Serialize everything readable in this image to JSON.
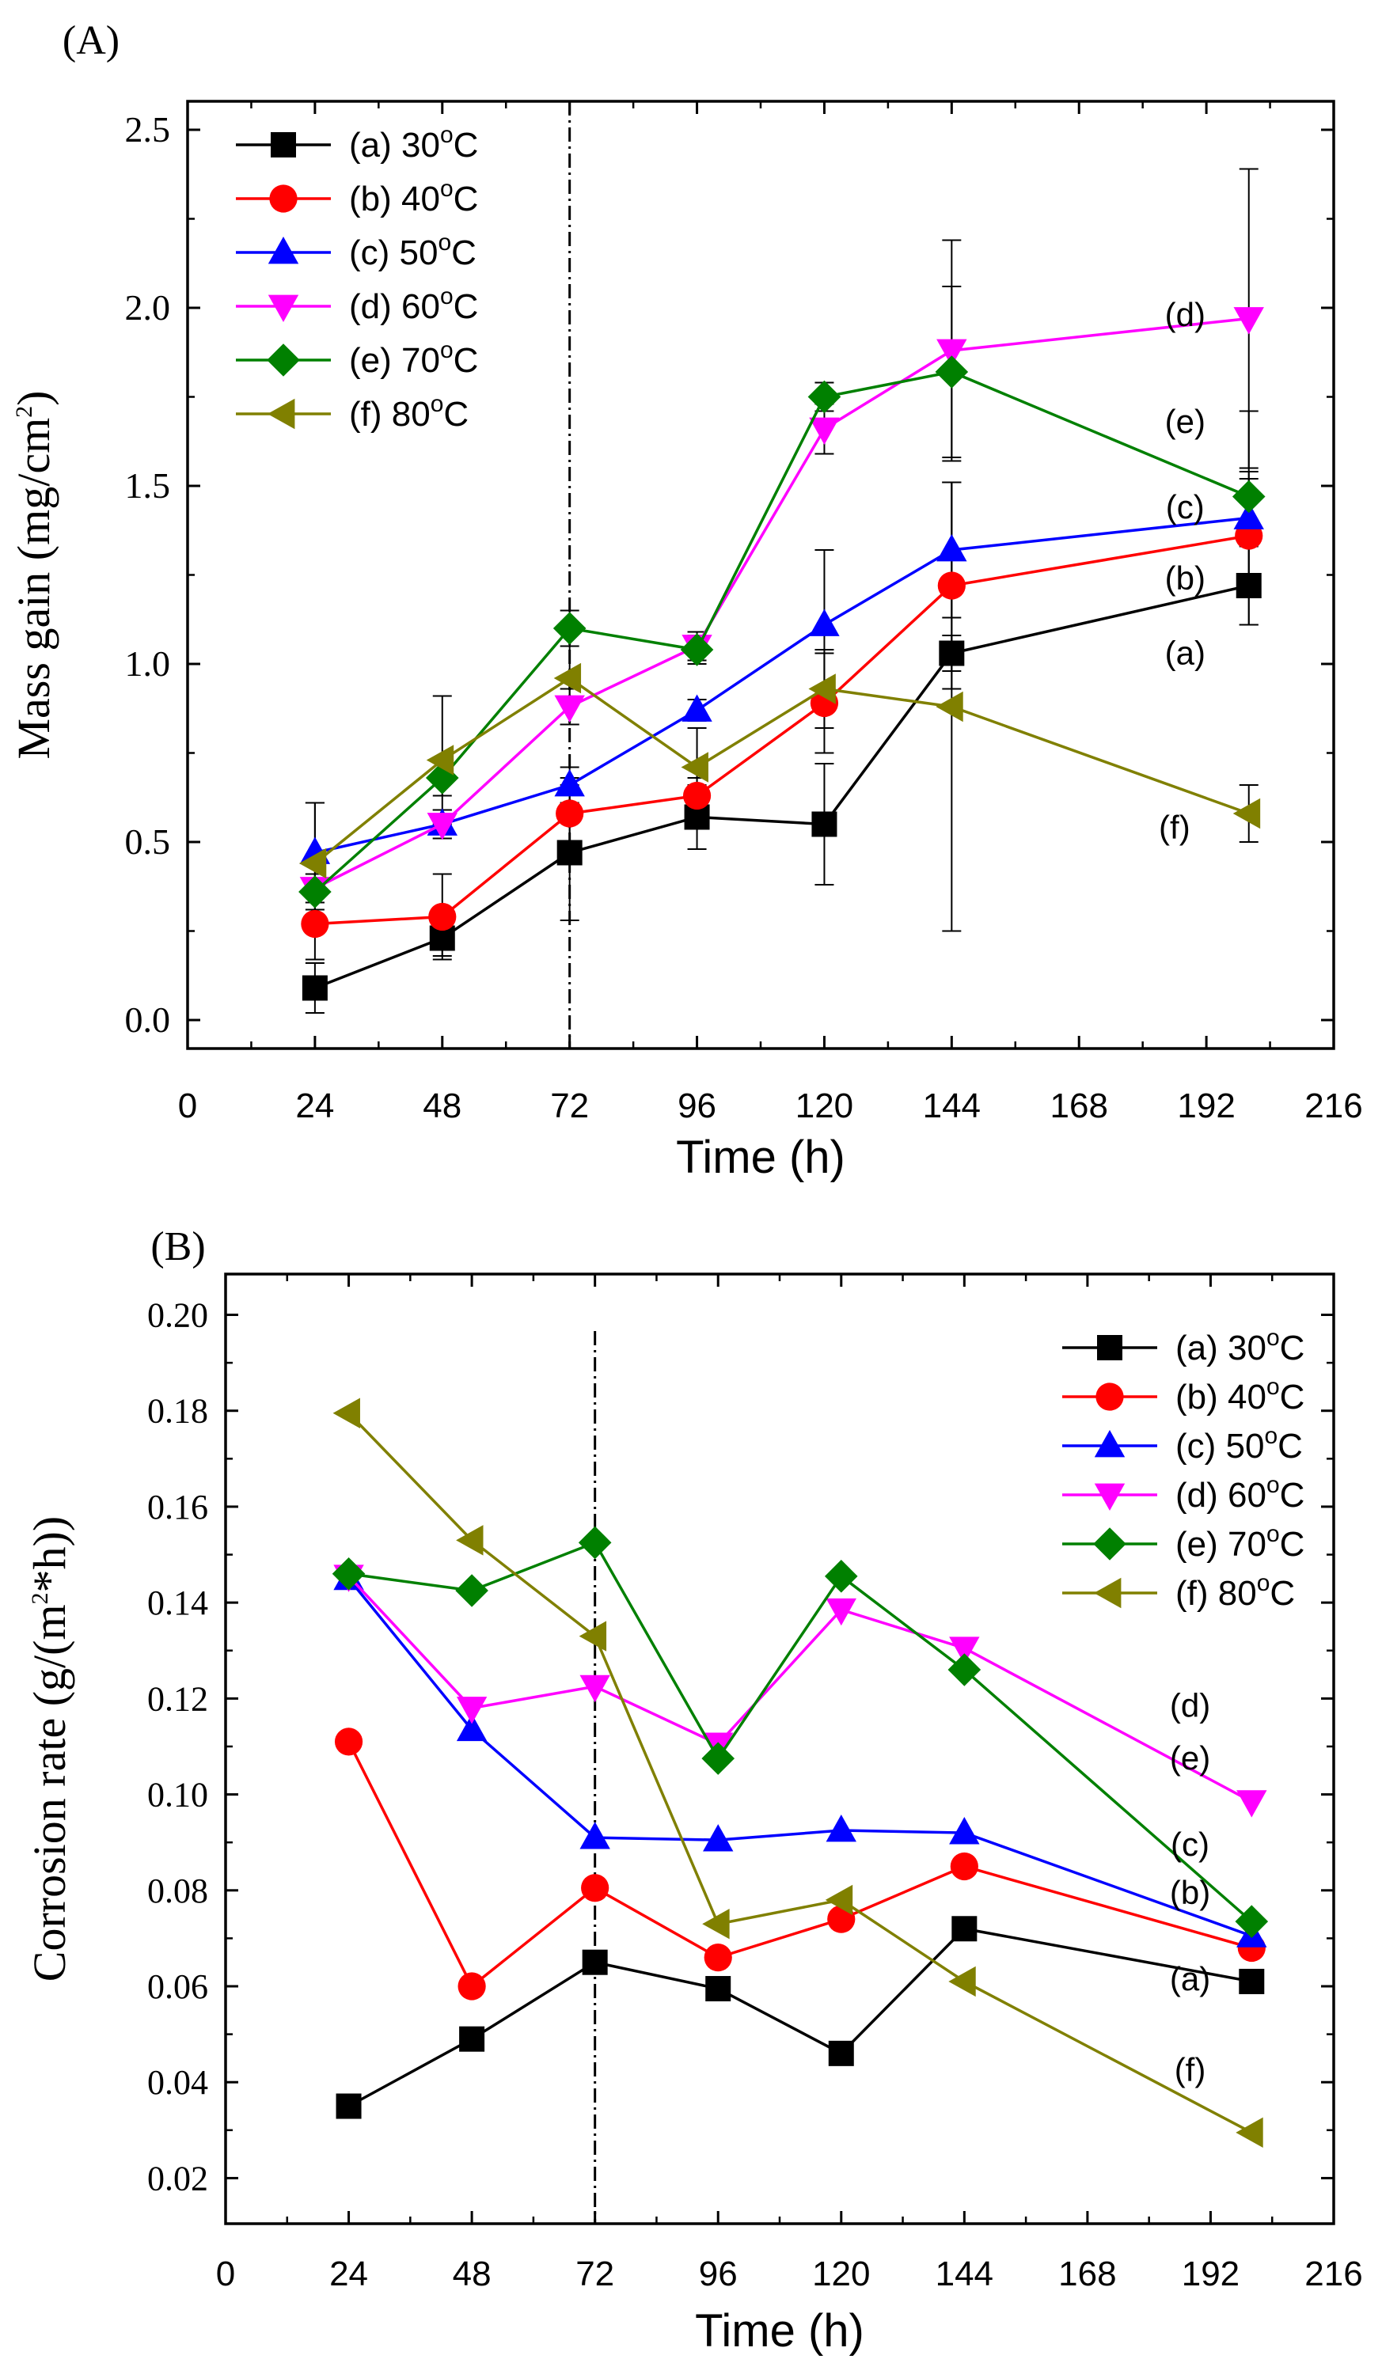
{
  "chart_data": [
    {
      "panel": "(A)",
      "type": "line",
      "xlabel": "Time (h)",
      "ylabel_main": "Mass gain (mg/cm",
      "ylabel_sup": "2",
      "ylabel_end": ")",
      "xlim": [
        0,
        216
      ],
      "ylim": [
        -0.08,
        2.58
      ],
      "xticks": [
        0,
        24,
        48,
        72,
        96,
        120,
        144,
        168,
        192,
        216
      ],
      "yticks": [
        0.0,
        0.5,
        1.0,
        1.5,
        2.0,
        2.5
      ],
      "ytick_labels": [
        "0.0",
        "0.5",
        "1.0",
        "1.5",
        "2.0",
        "2.5"
      ],
      "vline_x": 72,
      "legend_position": "top-left",
      "series": [
        {
          "name": "(a) 30°C",
          "legend_main": "(a) 30",
          "color": "#000000",
          "marker": "square",
          "x": [
            24,
            48,
            72,
            96,
            120,
            144,
            200
          ],
          "y": [
            0.09,
            0.23,
            0.47,
            0.57,
            0.55,
            1.03,
            1.22
          ],
          "err": [
            0.07,
            0.05,
            0.19,
            0.09,
            0.17,
            0.05,
            0.11
          ]
        },
        {
          "name": "(b) 40°C",
          "legend_main": "(b) 40",
          "color": "#ff0000",
          "marker": "circle",
          "x": [
            24,
            48,
            72,
            96,
            120,
            144,
            200
          ],
          "y": [
            0.27,
            0.29,
            0.58,
            0.63,
            0.89,
            1.22,
            1.36
          ],
          "err": [
            0.1,
            0.12,
            0.1,
            0.05,
            0.14,
            0.29,
            0.16
          ]
        },
        {
          "name": "(c) 50°C",
          "legend_main": "(c) 50",
          "color": "#0000ff",
          "marker": "triangle-up",
          "x": [
            24,
            48,
            72,
            96,
            120,
            144,
            200
          ],
          "y": [
            0.47,
            0.55,
            0.66,
            0.87,
            1.11,
            1.32,
            1.41
          ],
          "err": [
            0.14,
            0.04,
            0.05,
            0.03,
            0.21,
            0.19,
            0.3
          ]
        },
        {
          "name": "(d) 60°C",
          "legend_main": "(d) 60",
          "color": "#ff00ff",
          "marker": "triangle-down",
          "x": [
            24,
            48,
            72,
            96,
            120,
            144,
            200
          ],
          "y": [
            0.37,
            0.55,
            0.88,
            1.05,
            1.66,
            1.88,
            1.97
          ],
          "err": [
            0.04,
            0.04,
            0.05,
            0.04,
            0.07,
            0.31,
            0.42
          ]
        },
        {
          "name": "(e) 70°C",
          "legend_main": "(e) 70",
          "color": "#008000",
          "marker": "diamond",
          "x": [
            24,
            48,
            72,
            96,
            120,
            144,
            200
          ],
          "y": [
            0.36,
            0.68,
            1.1,
            1.04,
            1.75,
            1.82,
            1.47
          ],
          "err": [
            0.05,
            0.05,
            0.05,
            0.04,
            0.04,
            0.24,
            0.07
          ]
        },
        {
          "name": "(f) 80°C",
          "legend_main": "(f)  80",
          "color": "#808000",
          "marker": "triangle-left",
          "x": [
            24,
            48,
            72,
            96,
            120,
            144,
            200
          ],
          "y": [
            0.44,
            0.73,
            0.96,
            0.71,
            0.93,
            0.88,
            0.58
          ],
          "err": [
            0.17,
            0.18,
            0.13,
            0.11,
            0.11,
            0.63,
            0.08
          ]
        }
      ],
      "annotations": [
        {
          "text": "(d)",
          "x": 188,
          "y": 1.98
        },
        {
          "text": "(e)",
          "x": 188,
          "y": 1.68
        },
        {
          "text": "(c)",
          "x": 188,
          "y": 1.44
        },
        {
          "text": "(b)",
          "x": 188,
          "y": 1.24
        },
        {
          "text": "(a)",
          "x": 188,
          "y": 1.03
        },
        {
          "text": "(f)",
          "x": 186,
          "y": 0.54
        }
      ]
    },
    {
      "panel": "(B)",
      "type": "line",
      "xlabel": "Time (h)",
      "ylabel_main": "Corrosion rate (g/(m",
      "ylabel_sup": "2",
      "ylabel_end": "*h))",
      "xlim": [
        0,
        216
      ],
      "ylim": [
        0.0105,
        0.2085
      ],
      "xticks": [
        0,
        24,
        48,
        72,
        96,
        120,
        144,
        168,
        192,
        216
      ],
      "yticks": [
        0.02,
        0.04,
        0.06,
        0.08,
        0.1,
        0.12,
        0.14,
        0.16,
        0.18,
        0.2
      ],
      "ytick_labels": [
        "0.02",
        "0.04",
        "0.06",
        "0.08",
        "0.10",
        "0.12",
        "0.14",
        "0.16",
        "0.18",
        "0.20"
      ],
      "vline_x": 72,
      "legend_position": "top-right",
      "series": [
        {
          "name": "(a) 30°C",
          "legend_main": "(a) 30",
          "color": "#000000",
          "marker": "square",
          "x": [
            24,
            48,
            72,
            96,
            120,
            144,
            200
          ],
          "y": [
            0.035,
            0.049,
            0.065,
            0.0595,
            0.046,
            0.072,
            0.061
          ]
        },
        {
          "name": "(b) 40°C",
          "legend_main": "(b) 40",
          "color": "#ff0000",
          "marker": "circle",
          "x": [
            24,
            48,
            72,
            96,
            120,
            144,
            200
          ],
          "y": [
            0.111,
            0.06,
            0.0805,
            0.066,
            0.074,
            0.085,
            0.068
          ]
        },
        {
          "name": "(c) 50°C",
          "legend_main": "(c) 50",
          "color": "#0000ff",
          "marker": "triangle-up",
          "x": [
            24,
            48,
            72,
            96,
            120,
            144,
            200
          ],
          "y": [
            0.145,
            0.1135,
            0.091,
            0.0905,
            0.0925,
            0.092,
            0.0705
          ]
        },
        {
          "name": "(d) 60°C",
          "legend_main": "(d) 60",
          "color": "#ff00ff",
          "marker": "triangle-down",
          "x": [
            24,
            48,
            72,
            96,
            120,
            144,
            200
          ],
          "y": [
            0.1455,
            0.118,
            0.1225,
            0.1105,
            0.1385,
            0.1305,
            0.0985
          ]
        },
        {
          "name": "(e) 70°C",
          "legend_main": "(e) 70",
          "color": "#008000",
          "marker": "diamond",
          "x": [
            24,
            48,
            72,
            96,
            120,
            144,
            200
          ],
          "y": [
            0.146,
            0.1425,
            0.1525,
            0.1075,
            0.1455,
            0.126,
            0.0735
          ]
        },
        {
          "name": "(f) 80°C",
          "legend_main": "(f)  80",
          "color": "#808000",
          "marker": "triangle-left",
          "x": [
            24,
            48,
            72,
            96,
            120,
            144,
            200
          ],
          "y": [
            0.1795,
            0.153,
            0.133,
            0.073,
            0.078,
            0.061,
            0.0295
          ]
        }
      ],
      "annotations": [
        {
          "text": "(d)",
          "x": 188,
          "y": 0.1185
        },
        {
          "text": "(e)",
          "x": 188,
          "y": 0.1075
        },
        {
          "text": "(c)",
          "x": 188,
          "y": 0.0895
        },
        {
          "text": "(b)",
          "x": 188,
          "y": 0.0795
        },
        {
          "text": "(a)",
          "x": 188,
          "y": 0.0615
        },
        {
          "text": "(f)",
          "x": 188,
          "y": 0.0425
        }
      ]
    }
  ]
}
